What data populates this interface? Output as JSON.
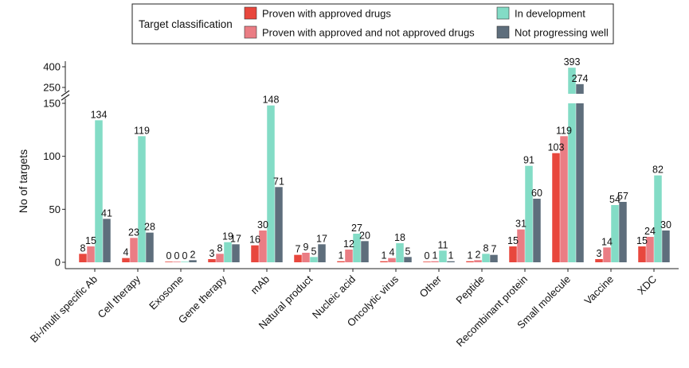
{
  "chart_data": {
    "type": "bar",
    "ylabel": "No of targets",
    "legend": {
      "title": "Target classification",
      "placement": "top-center"
    },
    "categories": [
      "Bi-/multi specific Ab",
      "Cell therapy",
      "Exosome",
      "Gene therapy",
      "mAb",
      "Natural product",
      "Nucleic acid",
      "Oncolytic virus",
      "Other",
      "Peptide",
      "Recombinant protein",
      "Small molecule",
      "Vaccine",
      "XDC"
    ],
    "series": [
      {
        "name": "Proven with approved drugs",
        "color": "#e8473d",
        "values": [
          8,
          4,
          0,
          3,
          16,
          7,
          1,
          1,
          0,
          1,
          15,
          103,
          3,
          15
        ]
      },
      {
        "name": "Proven with approved and not approved drugs",
        "color": "#ea7d84",
        "values": [
          15,
          23,
          0,
          8,
          30,
          9,
          12,
          4,
          1,
          2,
          31,
          119,
          14,
          24
        ]
      },
      {
        "name": "In development",
        "color": "#83dcc6",
        "values": [
          134,
          119,
          0,
          19,
          148,
          5,
          27,
          18,
          11,
          8,
          91,
          393,
          54,
          82
        ]
      },
      {
        "name": "Not progressing well",
        "color": "#5e6e7c",
        "values": [
          41,
          28,
          2,
          17,
          71,
          17,
          20,
          5,
          1,
          7,
          60,
          274,
          57,
          30
        ]
      }
    ],
    "y_axis": {
      "lower_range": [
        0,
        150
      ],
      "lower_ticks": [
        0,
        50,
        100,
        150
      ],
      "break": true,
      "upper_range": [
        250,
        400
      ],
      "upper_ticks": [
        250,
        400
      ]
    },
    "grid": false
  }
}
